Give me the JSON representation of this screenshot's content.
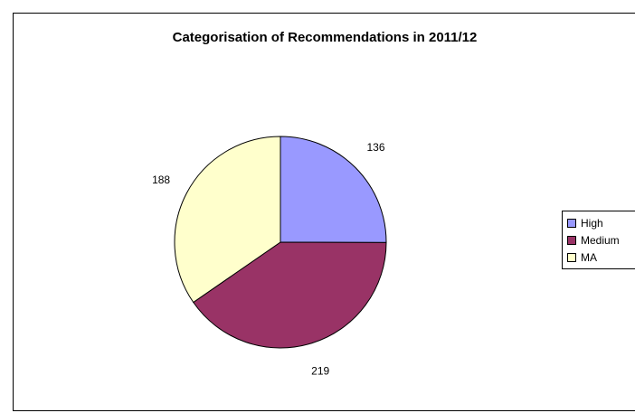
{
  "chart_data": {
    "type": "pie",
    "title": "Categorisation of Recommendations in 2011/12",
    "categories": [
      "High",
      "Medium",
      "MA"
    ],
    "values": [
      136,
      219,
      188
    ],
    "colors": [
      "#9999ff",
      "#993366",
      "#ffffcc"
    ],
    "legend_position": "right"
  }
}
